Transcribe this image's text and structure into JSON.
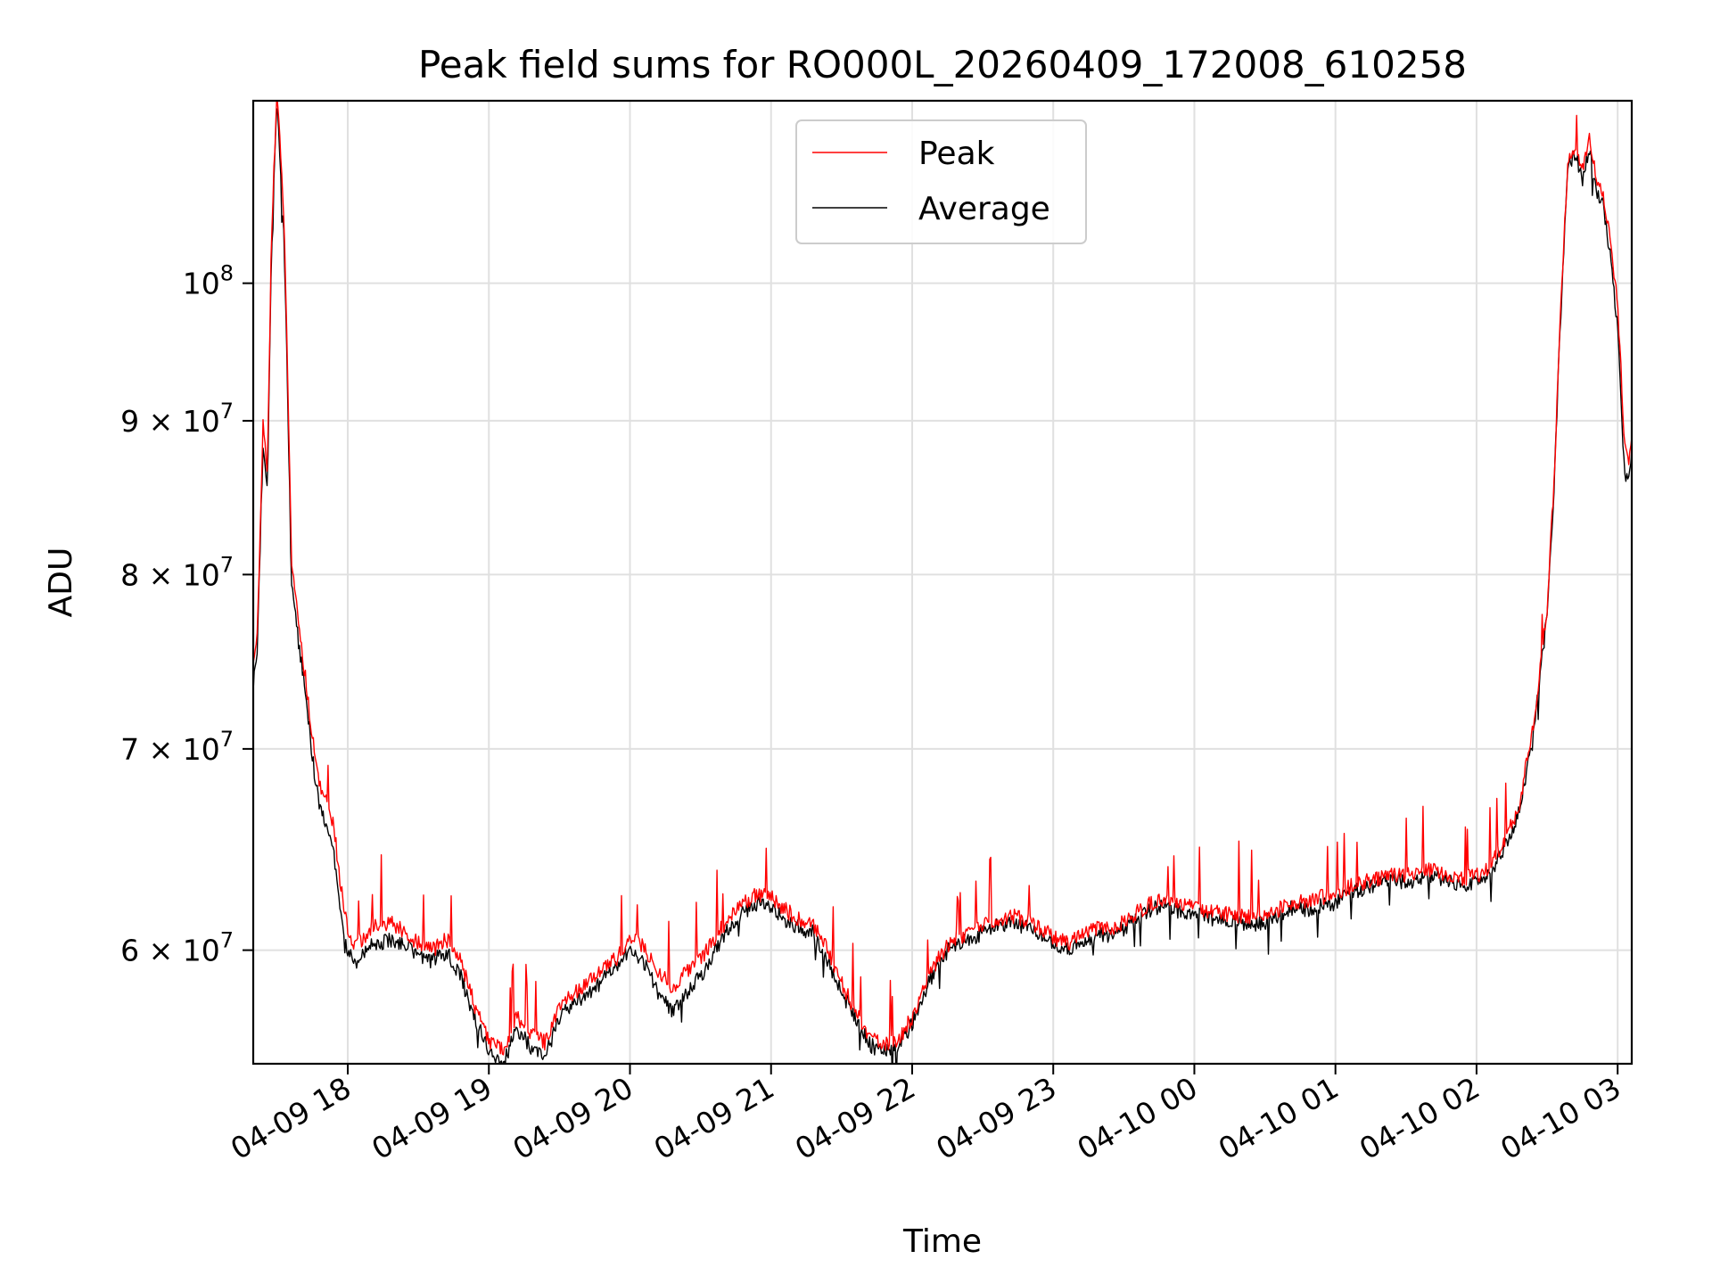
{
  "chart_data": {
    "type": "line",
    "title": "Peak field sums for RO000L_20260409_172008_610258",
    "xlabel": "Time",
    "ylabel": "ADU",
    "y_scale": "log",
    "grid": true,
    "legend_position": "upper-center",
    "xlim_hours": [
      17.33,
      27.1
    ],
    "ylim": [
      55000000,
      115000000
    ],
    "x_ticks": [
      {
        "hour": 18,
        "label": "04-09 18"
      },
      {
        "hour": 19,
        "label": "04-09 19"
      },
      {
        "hour": 20,
        "label": "04-09 20"
      },
      {
        "hour": 21,
        "label": "04-09 21"
      },
      {
        "hour": 22,
        "label": "04-09 22"
      },
      {
        "hour": 23,
        "label": "04-09 23"
      },
      {
        "hour": 24,
        "label": "04-10 00"
      },
      {
        "hour": 25,
        "label": "04-10 01"
      },
      {
        "hour": 26,
        "label": "04-10 02"
      },
      {
        "hour": 27,
        "label": "04-10 03"
      }
    ],
    "y_ticks": [
      {
        "value": 60000000,
        "mantissa": "6",
        "times": "×",
        "base": "10",
        "exp": "7"
      },
      {
        "value": 70000000,
        "mantissa": "7",
        "times": "×",
        "base": "10",
        "exp": "7"
      },
      {
        "value": 80000000,
        "mantissa": "8",
        "times": "×",
        "base": "10",
        "exp": "7"
      },
      {
        "value": 90000000,
        "mantissa": "9",
        "times": "×",
        "base": "10",
        "exp": "7"
      },
      {
        "value": 100000000,
        "mantissa": "",
        "times": "",
        "base": "10",
        "exp": "8"
      }
    ],
    "series": [
      {
        "name": "Peak",
        "color": "#ff0000",
        "x_hours": [
          17.33,
          17.36,
          17.4,
          17.43,
          17.46,
          17.5,
          17.55,
          17.6,
          17.65,
          17.7,
          17.75,
          17.8,
          17.85,
          17.9,
          17.95,
          18.0,
          18.05,
          18.1,
          18.15,
          18.2,
          18.3,
          18.4,
          18.5,
          18.6,
          18.7,
          18.8,
          18.9,
          19.0,
          19.1,
          19.2,
          19.3,
          19.4,
          19.5,
          19.6,
          19.7,
          19.8,
          19.9,
          20.0,
          20.1,
          20.2,
          20.3,
          20.4,
          20.5,
          20.6,
          20.7,
          20.8,
          20.9,
          21.0,
          21.1,
          21.2,
          21.3,
          21.4,
          21.5,
          21.6,
          21.7,
          21.8,
          21.9,
          22.0,
          22.1,
          22.2,
          22.3,
          22.4,
          22.5,
          22.6,
          22.7,
          22.8,
          22.9,
          23.0,
          23.1,
          23.2,
          23.3,
          23.4,
          23.5,
          23.6,
          23.7,
          23.8,
          23.9,
          24.0,
          24.1,
          24.2,
          24.3,
          24.4,
          24.5,
          24.6,
          24.7,
          24.8,
          24.9,
          25.0,
          25.1,
          25.2,
          25.3,
          25.4,
          25.5,
          25.6,
          25.7,
          25.8,
          25.9,
          26.0,
          26.1,
          26.2,
          26.3,
          26.4,
          26.5,
          26.55,
          26.6,
          26.65,
          26.7,
          26.75,
          26.8,
          26.85,
          26.9,
          26.95,
          27.0,
          27.05,
          27.08,
          27.1
        ],
        "values": [
          74500000,
          76500000,
          90000000,
          86000000,
          104000000,
          116000000,
          104000000,
          81000000,
          77000000,
          74000000,
          70500000,
          68000000,
          67500000,
          66000000,
          63000000,
          61000000,
          60200000,
          60500000,
          60900000,
          61100000,
          61300000,
          60900000,
          60300000,
          60000000,
          60500000,
          59500000,
          57500000,
          56000000,
          55600000,
          57000000,
          56300000,
          55900000,
          57500000,
          58000000,
          58500000,
          59000000,
          59600000,
          60600000,
          60100000,
          59000000,
          58300000,
          59000000,
          59600000,
          60600000,
          61500000,
          62200000,
          62600000,
          62500000,
          61900000,
          61400000,
          61200000,
          60000000,
          58500000,
          57200000,
          56200000,
          55800000,
          56000000,
          57000000,
          58600000,
          59800000,
          60500000,
          60800000,
          61100000,
          61400000,
          61600000,
          61400000,
          61100000,
          60600000,
          60300000,
          60700000,
          61000000,
          61000000,
          61300000,
          61800000,
          62200000,
          62400000,
          62100000,
          62000000,
          61800000,
          61700000,
          61600000,
          61500000,
          61600000,
          61900000,
          62300000,
          62200000,
          62500000,
          62500000,
          63000000,
          63200000,
          63400000,
          63600000,
          63500000,
          63700000,
          63900000,
          63500000,
          63400000,
          63500000,
          64000000,
          65200000,
          67000000,
          71000000,
          78000000,
          86000000,
          99000000,
          110000000,
          111000000,
          109000000,
          112000000,
          108000000,
          107000000,
          103000000,
          98500000,
          88000000,
          87000000,
          88500000
        ]
      },
      {
        "name": "Average",
        "color": "#000000",
        "x_hours": [
          17.33,
          17.36,
          17.4,
          17.43,
          17.46,
          17.5,
          17.55,
          17.6,
          17.65,
          17.7,
          17.75,
          17.8,
          17.85,
          17.9,
          17.95,
          18.0,
          18.05,
          18.1,
          18.15,
          18.2,
          18.3,
          18.4,
          18.5,
          18.6,
          18.7,
          18.8,
          18.9,
          19.0,
          19.1,
          19.2,
          19.3,
          19.4,
          19.5,
          19.6,
          19.7,
          19.8,
          19.9,
          20.0,
          20.1,
          20.2,
          20.3,
          20.4,
          20.5,
          20.6,
          20.7,
          20.8,
          20.9,
          21.0,
          21.1,
          21.2,
          21.3,
          21.4,
          21.5,
          21.6,
          21.7,
          21.8,
          21.9,
          22.0,
          22.1,
          22.2,
          22.3,
          22.4,
          22.5,
          22.6,
          22.7,
          22.8,
          22.9,
          23.0,
          23.1,
          23.2,
          23.3,
          23.4,
          23.5,
          23.6,
          23.7,
          23.8,
          23.9,
          24.0,
          24.1,
          24.2,
          24.3,
          24.4,
          24.5,
          24.6,
          24.7,
          24.8,
          24.9,
          25.0,
          25.1,
          25.2,
          25.3,
          25.4,
          25.5,
          25.6,
          25.7,
          25.8,
          25.9,
          26.0,
          26.1,
          26.2,
          26.3,
          26.4,
          26.5,
          26.55,
          26.6,
          26.65,
          26.7,
          26.75,
          26.8,
          26.85,
          26.9,
          26.95,
          27.0,
          27.05,
          27.08,
          27.1
        ],
        "values": [
          73500000,
          75500000,
          88500000,
          85000000,
          103000000,
          115000000,
          103000000,
          79500000,
          76000000,
          73000000,
          69500000,
          66800000,
          66000000,
          64500000,
          61800000,
          60000000,
          59400000,
          59700000,
          60100000,
          60300000,
          60500000,
          60300000,
          59800000,
          59500000,
          59900000,
          58800000,
          57000000,
          55500000,
          55000000,
          56500000,
          55700000,
          55300000,
          57000000,
          57500000,
          58000000,
          58600000,
          59200000,
          60100000,
          59400000,
          58100000,
          57300000,
          58000000,
          58800000,
          59900000,
          61000000,
          61800000,
          62200000,
          62000000,
          61400000,
          61000000,
          60800000,
          59500000,
          58100000,
          56900000,
          55800000,
          55500000,
          55700000,
          56700000,
          58300000,
          59600000,
          60300000,
          60500000,
          60800000,
          61100000,
          61300000,
          61100000,
          60800000,
          60300000,
          60000000,
          60400000,
          60700000,
          60700000,
          61000000,
          61500000,
          61900000,
          62100000,
          61800000,
          61700000,
          61500000,
          61400000,
          61300000,
          61200000,
          61300000,
          61600000,
          62000000,
          61900000,
          62100000,
          62200000,
          62700000,
          62900000,
          63100000,
          63300000,
          63200000,
          63400000,
          63600000,
          63200000,
          63100000,
          63200000,
          63700000,
          64900000,
          66700000,
          70500000,
          77500000,
          85500000,
          98500000,
          109500000,
          110500000,
          108000000,
          111000000,
          107000000,
          106000000,
          102000000,
          96500000,
          86000000,
          86500000,
          88000000
        ]
      }
    ]
  }
}
